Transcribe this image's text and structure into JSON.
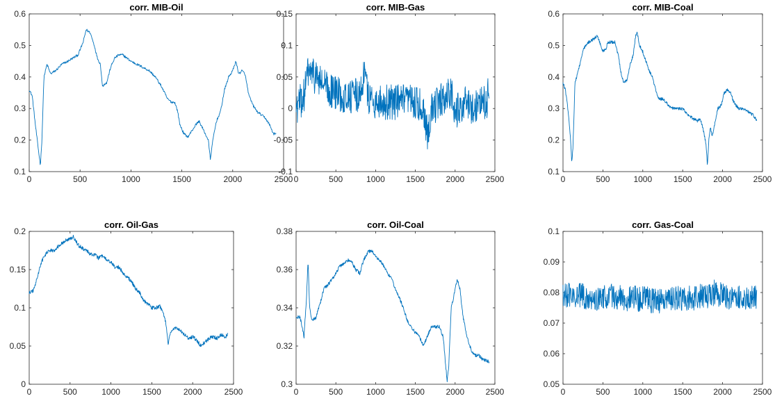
{
  "chart_data": [
    {
      "type": "line",
      "title": "corr. MIB-Oil",
      "xlim": [
        0,
        2500
      ],
      "ylim": [
        0.1,
        0.6
      ],
      "xticks": [
        "0",
        "500",
        "1000",
        "1500",
        "2000",
        "2500"
      ],
      "yticks": [
        "0.1",
        "0.2",
        "0.3",
        "0.4",
        "0.5",
        "0.6"
      ],
      "series": [
        {
          "color": "#0072BD",
          "noise": 0.004,
          "x": [
            0,
            30,
            60,
            90,
            110,
            125,
            145,
            175,
            210,
            260,
            320,
            380,
            430,
            480,
            530,
            560,
            600,
            640,
            670,
            700,
            720,
            745,
            760,
            800,
            840,
            880,
            920,
            960,
            1000,
            1060,
            1120,
            1180,
            1240,
            1300,
            1360,
            1400,
            1430,
            1460,
            1480,
            1520,
            1560,
            1600,
            1640,
            1670,
            1700,
            1730,
            1760,
            1780,
            1810,
            1840,
            1880,
            1920,
            1960,
            2000,
            2030,
            2060,
            2090,
            2120,
            2160,
            2200,
            2240,
            2280,
            2320,
            2360,
            2400,
            2430
          ],
          "y": [
            0.36,
            0.34,
            0.25,
            0.17,
            0.12,
            0.2,
            0.4,
            0.44,
            0.41,
            0.42,
            0.44,
            0.45,
            0.46,
            0.47,
            0.51,
            0.55,
            0.54,
            0.5,
            0.46,
            0.44,
            0.37,
            0.38,
            0.38,
            0.43,
            0.46,
            0.47,
            0.47,
            0.46,
            0.45,
            0.44,
            0.43,
            0.42,
            0.4,
            0.37,
            0.33,
            0.32,
            0.32,
            0.29,
            0.25,
            0.22,
            0.21,
            0.23,
            0.25,
            0.26,
            0.24,
            0.22,
            0.2,
            0.14,
            0.21,
            0.26,
            0.29,
            0.36,
            0.4,
            0.42,
            0.45,
            0.41,
            0.42,
            0.41,
            0.34,
            0.31,
            0.29,
            0.28,
            0.27,
            0.25,
            0.22,
            0.22
          ]
        }
      ]
    },
    {
      "type": "line",
      "title": "corr. MIB-Gas",
      "xlim": [
        0,
        2500
      ],
      "ylim": [
        -0.1,
        0.15
      ],
      "xticks": [
        "0",
        "500",
        "1000",
        "1500",
        "2000",
        "2500"
      ],
      "yticks": [
        "-0.1",
        "-0.05",
        "0",
        "0.05",
        "0.1",
        "0.15"
      ],
      "series": [
        {
          "color": "#0072BD",
          "noise": 0.028,
          "x": [
            0,
            100,
            150,
            250,
            400,
            600,
            800,
            860,
            900,
            1000,
            1200,
            1400,
            1500,
            1600,
            1650,
            1700,
            1800,
            1900,
            1950,
            2000,
            2100,
            2200,
            2300,
            2400,
            2430
          ],
          "y": [
            0.0,
            0.02,
            0.06,
            0.05,
            0.03,
            0.02,
            0.02,
            0.06,
            0.02,
            0.01,
            0.01,
            0.01,
            0.01,
            0.0,
            -0.04,
            0.0,
            0.01,
            0.02,
            0.03,
            -0.01,
            0.01,
            0.0,
            0.01,
            0.01,
            0.04
          ]
        }
      ]
    },
    {
      "type": "line",
      "title": "corr. MIB-Coal",
      "xlim": [
        0,
        2500
      ],
      "ylim": [
        0.1,
        0.6
      ],
      "xticks": [
        "0",
        "500",
        "1000",
        "1500",
        "2000",
        "2500"
      ],
      "yticks": [
        "0.1",
        "0.2",
        "0.3",
        "0.4",
        "0.5",
        "0.6"
      ],
      "series": [
        {
          "color": "#0072BD",
          "noise": 0.005,
          "x": [
            0,
            30,
            60,
            90,
            110,
            125,
            150,
            200,
            260,
            320,
            380,
            430,
            460,
            500,
            540,
            560,
            600,
            650,
            700,
            720,
            760,
            800,
            840,
            880,
            910,
            930,
            960,
            1000,
            1040,
            1080,
            1120,
            1160,
            1200,
            1260,
            1320,
            1380,
            1440,
            1500,
            1560,
            1620,
            1680,
            1720,
            1760,
            1790,
            1810,
            1830,
            1850,
            1870,
            1900,
            1940,
            1980,
            2020,
            2060,
            2100,
            2140,
            2200,
            2260,
            2320,
            2380,
            2430
          ],
          "y": [
            0.38,
            0.36,
            0.3,
            0.22,
            0.13,
            0.18,
            0.38,
            0.43,
            0.49,
            0.51,
            0.52,
            0.53,
            0.51,
            0.48,
            0.49,
            0.51,
            0.51,
            0.51,
            0.46,
            0.42,
            0.38,
            0.39,
            0.44,
            0.47,
            0.53,
            0.54,
            0.5,
            0.48,
            0.45,
            0.42,
            0.4,
            0.36,
            0.33,
            0.33,
            0.31,
            0.3,
            0.3,
            0.3,
            0.28,
            0.27,
            0.26,
            0.27,
            0.23,
            0.19,
            0.12,
            0.21,
            0.24,
            0.21,
            0.25,
            0.3,
            0.31,
            0.35,
            0.36,
            0.35,
            0.32,
            0.3,
            0.3,
            0.29,
            0.28,
            0.26
          ]
        }
      ]
    },
    {
      "type": "line",
      "title": "corr. Oil-Gas",
      "xlim": [
        0,
        2500
      ],
      "ylim": [
        0,
        0.2
      ],
      "xticks": [
        "0",
        "500",
        "1000",
        "1500",
        "2000",
        "2500"
      ],
      "yticks": [
        "0",
        "0.05",
        "0.1",
        "0.15",
        "0.2"
      ],
      "series": [
        {
          "color": "#0072BD",
          "noise": 0.0025,
          "x": [
            0,
            50,
            100,
            150,
            200,
            250,
            300,
            350,
            400,
            450,
            500,
            540,
            600,
            650,
            700,
            750,
            800,
            850,
            900,
            950,
            1000,
            1050,
            1100,
            1150,
            1200,
            1250,
            1300,
            1350,
            1400,
            1450,
            1500,
            1550,
            1600,
            1650,
            1680,
            1700,
            1720,
            1750,
            1800,
            1850,
            1900,
            1950,
            2000,
            2050,
            2100,
            2150,
            2200,
            2250,
            2300,
            2350,
            2400,
            2430
          ],
          "y": [
            0.12,
            0.122,
            0.14,
            0.16,
            0.17,
            0.175,
            0.175,
            0.18,
            0.185,
            0.188,
            0.19,
            0.193,
            0.182,
            0.178,
            0.175,
            0.17,
            0.17,
            0.165,
            0.168,
            0.162,
            0.16,
            0.153,
            0.153,
            0.145,
            0.14,
            0.135,
            0.125,
            0.12,
            0.11,
            0.105,
            0.1,
            0.1,
            0.102,
            0.09,
            0.075,
            0.05,
            0.065,
            0.07,
            0.075,
            0.07,
            0.065,
            0.06,
            0.062,
            0.058,
            0.05,
            0.055,
            0.06,
            0.062,
            0.06,
            0.065,
            0.062,
            0.065
          ]
        }
      ]
    },
    {
      "type": "line",
      "title": "corr. Oil-Coal",
      "xlim": [
        0,
        2500
      ],
      "ylim": [
        0.3,
        0.38
      ],
      "xticks": [
        "0",
        "500",
        "1000",
        "1500",
        "2000",
        "2500"
      ],
      "yticks": [
        "0.3",
        "0.32",
        "0.34",
        "0.36",
        "0.38"
      ],
      "series": [
        {
          "color": "#0072BD",
          "noise": 0.0009,
          "x": [
            0,
            50,
            100,
            130,
            150,
            170,
            200,
            250,
            300,
            350,
            400,
            450,
            500,
            550,
            600,
            650,
            700,
            750,
            800,
            850,
            900,
            950,
            1000,
            1050,
            1100,
            1150,
            1200,
            1250,
            1300,
            1350,
            1400,
            1450,
            1500,
            1550,
            1600,
            1650,
            1700,
            1750,
            1800,
            1850,
            1880,
            1900,
            1920,
            1950,
            1980,
            2000,
            2030,
            2060,
            2100,
            2150,
            2200,
            2250,
            2300,
            2350,
            2400,
            2430
          ],
          "y": [
            0.335,
            0.335,
            0.325,
            0.345,
            0.365,
            0.34,
            0.333,
            0.335,
            0.342,
            0.35,
            0.352,
            0.355,
            0.358,
            0.362,
            0.363,
            0.365,
            0.364,
            0.36,
            0.358,
            0.365,
            0.369,
            0.37,
            0.367,
            0.365,
            0.362,
            0.358,
            0.355,
            0.35,
            0.345,
            0.34,
            0.333,
            0.33,
            0.327,
            0.325,
            0.32,
            0.325,
            0.33,
            0.33,
            0.33,
            0.325,
            0.31,
            0.302,
            0.31,
            0.34,
            0.345,
            0.35,
            0.355,
            0.35,
            0.335,
            0.325,
            0.318,
            0.315,
            0.315,
            0.313,
            0.312,
            0.312
          ]
        }
      ]
    },
    {
      "type": "line",
      "title": "corr. Gas-Coal",
      "xlim": [
        0,
        2500
      ],
      "ylim": [
        0.05,
        0.1
      ],
      "xticks": [
        "0",
        "500",
        "1000",
        "1500",
        "2000",
        "2500"
      ],
      "yticks": [
        "0.05",
        "0.06",
        "0.07",
        "0.08",
        "0.09",
        "0.1"
      ],
      "series": [
        {
          "color": "#0072BD",
          "noise": 0.0042,
          "x": [
            0,
            200,
            400,
            600,
            800,
            1000,
            1200,
            1400,
            1600,
            1800,
            1900,
            2000,
            2200,
            2430
          ],
          "y": [
            0.079,
            0.079,
            0.078,
            0.079,
            0.078,
            0.078,
            0.077,
            0.078,
            0.078,
            0.079,
            0.08,
            0.079,
            0.078,
            0.078
          ]
        }
      ]
    }
  ]
}
